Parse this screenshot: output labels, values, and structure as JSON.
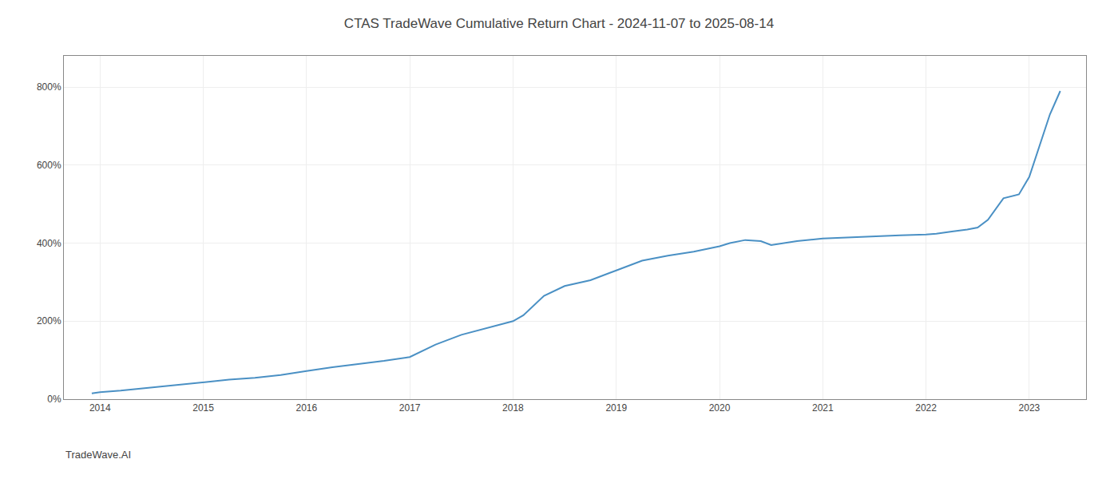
{
  "chart_data": {
    "type": "line",
    "title": "CTAS TradeWave Cumulative Return Chart - 2024-11-07 to 2025-08-14",
    "x": [
      2013.92,
      2014.0,
      2014.2,
      2014.5,
      2014.75,
      2015.0,
      2015.25,
      2015.5,
      2015.75,
      2016.0,
      2016.25,
      2016.5,
      2016.75,
      2017.0,
      2017.25,
      2017.5,
      2017.75,
      2018.0,
      2018.1,
      2018.3,
      2018.5,
      2018.75,
      2019.0,
      2019.25,
      2019.5,
      2019.75,
      2020.0,
      2020.1,
      2020.25,
      2020.4,
      2020.5,
      2020.75,
      2021.0,
      2021.25,
      2021.5,
      2021.75,
      2022.0,
      2022.1,
      2022.25,
      2022.4,
      2022.5,
      2022.6,
      2022.75,
      2022.9,
      2023.0,
      2023.1,
      2023.2,
      2023.3
    ],
    "values": [
      15,
      18,
      22,
      30,
      38,
      44,
      50,
      55,
      62,
      72,
      82,
      90,
      98,
      108,
      140,
      165,
      182,
      200,
      215,
      265,
      290,
      305,
      330,
      355,
      368,
      378,
      392,
      400,
      408,
      405,
      395,
      405,
      412,
      415,
      418,
      420,
      422,
      424,
      430,
      435,
      440,
      460,
      515,
      525,
      570,
      650,
      730,
      790
    ],
    "color": "#4a90c4",
    "xlim": [
      2013.65,
      2023.55
    ],
    "ylim": [
      0,
      880
    ],
    "xticks": [
      2014,
      2015,
      2016,
      2017,
      2018,
      2019,
      2020,
      2021,
      2022,
      2023
    ],
    "yticks": [
      {
        "value": 0,
        "label": "0%"
      },
      {
        "value": 200,
        "label": "200%"
      },
      {
        "value": 400,
        "label": "400%"
      },
      {
        "value": 600,
        "label": "600%"
      },
      {
        "value": 800,
        "label": "800%"
      }
    ],
    "grid": true,
    "annotations": [
      "TradeWave.AI"
    ]
  }
}
